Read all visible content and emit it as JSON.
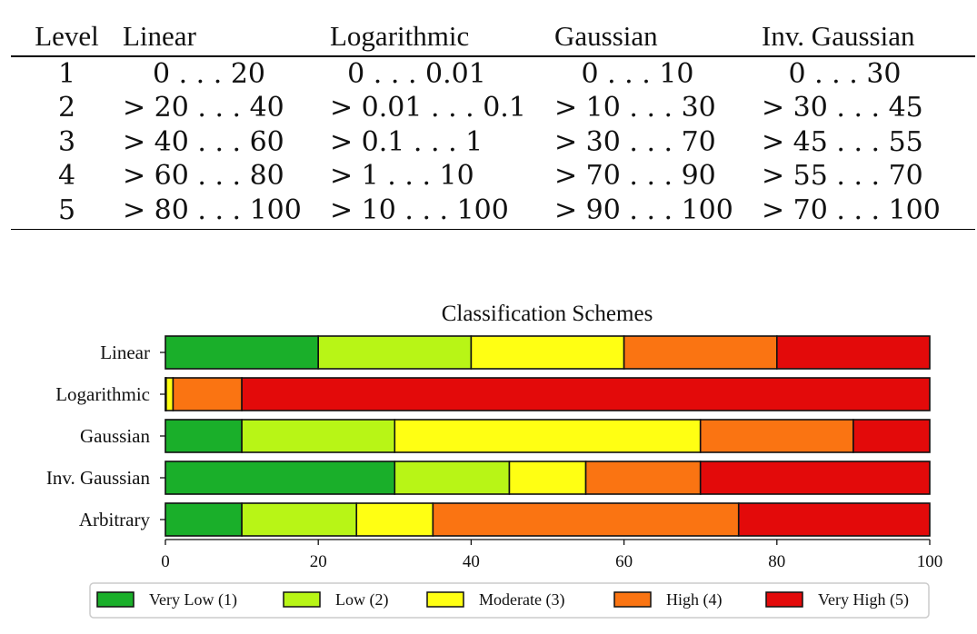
{
  "table": {
    "headers": [
      "Level",
      "Linear",
      "Logarithmic",
      "Gaussian",
      "Inv. Gaussian"
    ],
    "rows": [
      [
        "1",
        "0 . . . 20",
        "0 . . . 0.01",
        "0 . . . 10",
        "0 . . . 30"
      ],
      [
        "2",
        "> 20 . . . 40",
        "> 0.01 . . . 0.1",
        "> 10 . . . 30",
        "> 30 . . . 45"
      ],
      [
        "3",
        "> 40 . . . 60",
        "> 0.1 . . . 1",
        "> 30 . . . 70",
        "> 45 . . . 55"
      ],
      [
        "4",
        "> 60 . . . 80",
        "> 1 . . . 10",
        "> 70 . . . 90",
        "> 55 . . . 70"
      ],
      [
        "5",
        "> 80 . . . 100",
        "> 10 . . . 100",
        "> 90 . . . 100",
        "> 70 . . . 100"
      ]
    ]
  },
  "chart_data": {
    "type": "bar",
    "orientation": "horizontal",
    "stacked": true,
    "title": "Classification Schemes",
    "xlabel": "",
    "ylabel": "",
    "xlim": [
      0,
      100
    ],
    "xticks": [
      0,
      20,
      40,
      60,
      80,
      100
    ],
    "grid": false,
    "legend_position": "bottom",
    "categories": [
      "Linear",
      "Logarithmic",
      "Gaussian",
      "Inv. Gaussian",
      "Arbitrary"
    ],
    "series": [
      {
        "name": "Very Low (1)",
        "color": "#1aaf2a",
        "values": [
          20,
          0.01,
          10,
          30,
          10
        ]
      },
      {
        "name": "Low (2)",
        "color": "#b8f516",
        "values": [
          20,
          0.09,
          20,
          15,
          15
        ]
      },
      {
        "name": "Moderate (3)",
        "color": "#ffff13",
        "values": [
          20,
          0.9,
          40,
          10,
          10
        ]
      },
      {
        "name": "High (4)",
        "color": "#fa7412",
        "values": [
          20,
          9,
          20,
          15,
          40
        ]
      },
      {
        "name": "Very High (5)",
        "color": "#e30a0a",
        "values": [
          20,
          90,
          10,
          30,
          25
        ]
      }
    ]
  }
}
